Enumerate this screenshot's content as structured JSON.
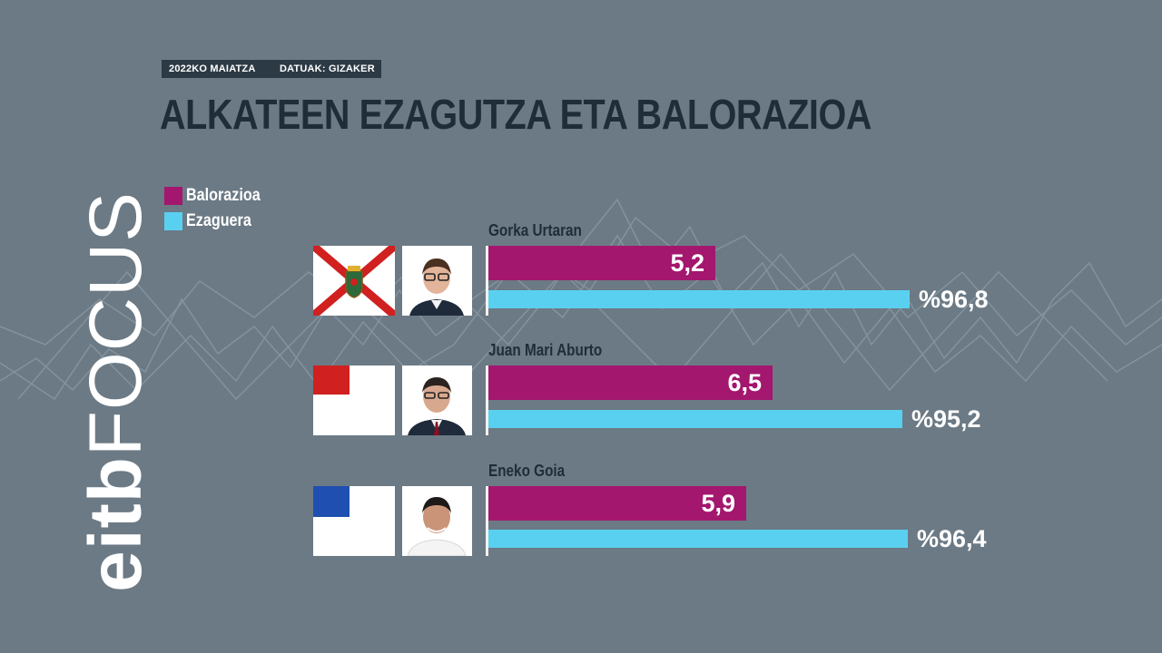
{
  "header": {
    "date_tag": "2022KO MAIATZA",
    "source_tag": "DATUAK: GIZAKER",
    "title": "ALKATEEN EZAGUTZA ETA BALORAZIOA"
  },
  "logo": {
    "eitb": "eitb",
    "focus": "FOCUS"
  },
  "colors": {
    "background": "#6b7a85",
    "rating": "#a3176e",
    "knowledge": "#5ad0f0",
    "title": "#1e2d38"
  },
  "chart_data": {
    "type": "bar",
    "orientation": "horizontal",
    "title": "ALKATEEN EZAGUTZA ETA BALORAZIOA",
    "legend": {
      "placement": "top-left",
      "entries": [
        "Balorazioa",
        "Ezaguera"
      ]
    },
    "categories": [
      "Gorka Urtaran",
      "Juan Mari Aburto",
      "Eneko Goia"
    ],
    "series": [
      {
        "name": "Balorazioa",
        "values": [
          5.2,
          6.5,
          5.9
        ],
        "labels": [
          "5,2",
          "6,5",
          "5,9"
        ],
        "xlim": [
          0,
          10
        ]
      },
      {
        "name": "Ezaguera",
        "values": [
          96.8,
          95.2,
          96.4
        ],
        "labels": [
          "%96,8",
          "%95,2",
          "%96,4"
        ],
        "xlim": [
          0,
          100
        ]
      }
    ]
  }
}
